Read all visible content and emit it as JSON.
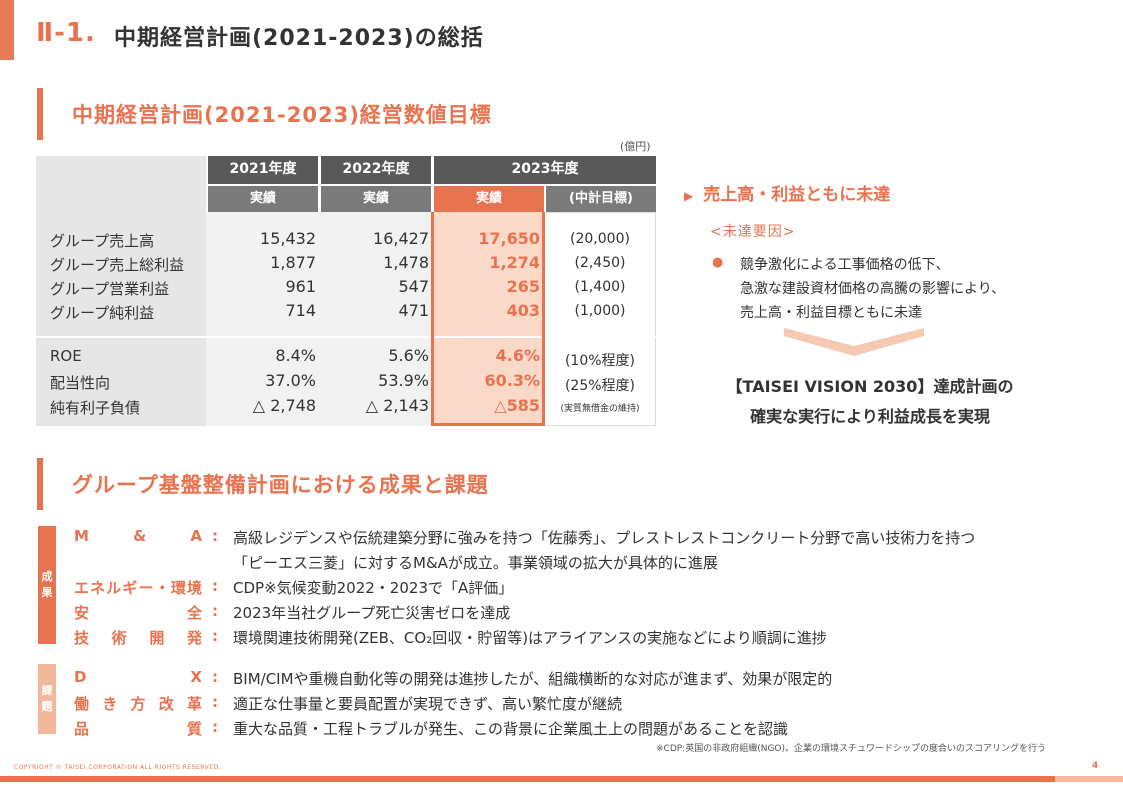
{
  "header": {
    "section_no": "Ⅱ-1.",
    "title": "中期経営計画(2021-2023)の総括"
  },
  "section1": {
    "title": "中期経営計画(2021-2023)経営数値目標",
    "unit": "(億円)"
  },
  "table": {
    "years": [
      "2021年度",
      "2022年度",
      "2023年度"
    ],
    "subheads": [
      "実績",
      "実績",
      "実績",
      "(中計目標)"
    ],
    "group1": [
      {
        "label": "グループ売上高",
        "v2021": "15,432",
        "v2022": "16,427",
        "v2023": "17,650",
        "target": "(20,000)"
      },
      {
        "label": "グループ売上総利益",
        "v2021": "1,877",
        "v2022": "1,478",
        "v2023": "1,274",
        "target": "(2,450)"
      },
      {
        "label": "グループ営業利益",
        "v2021": "961",
        "v2022": "547",
        "v2023": "265",
        "target": "(1,400)"
      },
      {
        "label": "グループ純利益",
        "v2021": "714",
        "v2022": "471",
        "v2023": "403",
        "target": "(1,000)"
      }
    ],
    "group2": [
      {
        "label": "ROE",
        "v2021": "8.4%",
        "v2022": "5.6%",
        "v2023": "4.6%",
        "target": "(10%程度)"
      },
      {
        "label": "配当性向",
        "v2021": "37.0%",
        "v2022": "53.9%",
        "v2023": "60.3%",
        "target": "(25%程度)"
      },
      {
        "label": "純有利子負債",
        "v2021": "△ 2,748",
        "v2022": "△ 2,143",
        "v2023": "△585",
        "target": "(実質無借金の維持)"
      }
    ]
  },
  "summary": {
    "heading": "売上高・利益ともに未達",
    "reason_heading": "<未達要因>",
    "reason_lines": [
      "競争激化による工事価格の低下、",
      "急激な建設資材価格の高騰の影響により、",
      "売上高・利益目標ともに未達"
    ],
    "vision_lines": [
      "【TAISEI VISION 2030】達成計画の",
      "確実な実行により利益成長を実現"
    ]
  },
  "section2": {
    "title": "グループ基盤整備計画における成果と課題"
  },
  "achievements": {
    "tag": "成果",
    "items": [
      {
        "label": "M & A",
        "lines": [
          "高級レジデンスや伝統建築分野に強みを持つ「佐藤秀」、プレストレストコンクリート分野で高い技術力を持つ",
          "「ピーエス三菱」に対するM&Aが成立。事業領域の拡大が具体的に進展"
        ]
      },
      {
        "label": "エネルギー・環境",
        "lines": [
          "CDP※気候変動2022・2023で「A評価」"
        ]
      },
      {
        "label": "安 全",
        "lines": [
          "2023年当社グループ死亡災害ゼロを達成"
        ]
      },
      {
        "label": "技 術 開 発",
        "lines": [
          "環境関連技術開発(ZEB、CO₂回収・貯留等)はアライアンスの実施などにより順調に進捗"
        ]
      }
    ]
  },
  "issues": {
    "tag": "課題",
    "items": [
      {
        "label": "D X",
        "lines": [
          "BIM/CIMや重機自動化等の開発は進捗したが、組織横断的な対応が進まず、効果が限定的"
        ]
      },
      {
        "label": "働き方改革",
        "lines": [
          "適正な仕事量と要員配置が実現できず、高い繁忙度が継続"
        ]
      },
      {
        "label": "品 質",
        "lines": [
          "重大な品質・工程トラブルが発生、この背景に企業風土上の問題があることを認識"
        ]
      }
    ]
  },
  "footer": {
    "footnote": "※CDP:英国の非政府組織(NGO)。企業の環境スチュワードシップの度合いのスコアリングを行う",
    "copyright": "COPYRIGHT © TAISEI CORPORATION ALL RIGHTS RESERVED.",
    "page": "4"
  },
  "colors": {
    "accent": "#e8734f",
    "accent_light": "#f3b79c",
    "header_dark": "#595959",
    "table_bg": "#e6e6e6"
  }
}
